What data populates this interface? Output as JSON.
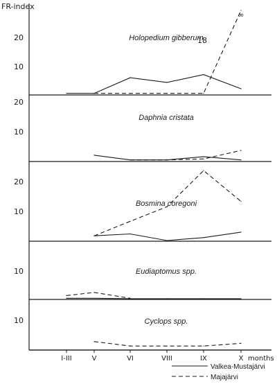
{
  "chart_data": {
    "type": "line",
    "y_label": "FR-index",
    "x_unit_label": "months",
    "categories": [
      "I-III",
      "V",
      "VI",
      "VIII",
      "IX",
      "X"
    ],
    "legend": [
      {
        "name": "Valkea-Mustajärvi",
        "style": "solid"
      },
      {
        "name": "Majajärvi",
        "style": "dashed"
      }
    ],
    "panels": [
      {
        "title": "Holopedium gibberum",
        "ylim": [
          0,
          27
        ],
        "yticks": [
          "10",
          "20"
        ],
        "series": [
          {
            "name": "Valkea-Mustajärvi",
            "style": "solid",
            "values": [
              0.5,
              0.5,
              5.5,
              4,
              6.5,
              2
            ]
          },
          {
            "name": "Majajärvi",
            "style": "dashed",
            "values": [
              null,
              0.5,
              0.5,
              0.5,
              0.5,
              27
            ]
          }
        ],
        "annotations": [
          {
            "text": "18",
            "x": "IX"
          },
          {
            "text": "∞",
            "x": "X"
          }
        ]
      },
      {
        "title": "Daphnia cristata",
        "ylim": [
          0,
          21
        ],
        "yticks": [
          "20",
          "10"
        ],
        "series": [
          {
            "name": "Valkea-Mustajärvi",
            "style": "solid",
            "values": [
              null,
              2,
              0.5,
              0.5,
              1.5,
              0.5
            ]
          },
          {
            "name": "Majajärvi",
            "style": "dashed",
            "values": [
              null,
              null,
              0.5,
              0.5,
              0.8,
              3.5
            ]
          }
        ]
      },
      {
        "title": "Bosmina coregoni",
        "ylim": [
          0,
          22
        ],
        "yticks": [
          "20",
          "10"
        ],
        "series": [
          {
            "name": "Valkea-Mustajärvi",
            "style": "solid",
            "values": [
              null,
              1.5,
              2,
              0.2,
              1,
              2.5
            ]
          },
          {
            "name": "Majajärvi",
            "style": "dashed",
            "values": [
              null,
              1.5,
              5.5,
              9.5,
              19.5,
              11
            ]
          }
        ]
      },
      {
        "title": "Eudiaptomus spp.",
        "ylim": [
          0,
          15
        ],
        "yticks": [
          "10"
        ],
        "series": [
          {
            "name": "Valkea-Mustajärvi",
            "style": "solid",
            "values": [
              0.3,
              0.3,
              0.2,
              0.2,
              0.2,
              0.2
            ]
          },
          {
            "name": "Majajärvi",
            "style": "dashed",
            "values": [
              1,
              1.8,
              0.3,
              null,
              null,
              null
            ]
          }
        ]
      },
      {
        "title": "Cyclops spp.",
        "ylim": [
          0,
          15
        ],
        "yticks": [
          "10"
        ],
        "series": [
          {
            "name": "Majajärvi",
            "style": "dashed",
            "values": [
              null,
              2.5,
              1.2,
              1.2,
              1.2,
              2
            ]
          }
        ]
      }
    ]
  }
}
